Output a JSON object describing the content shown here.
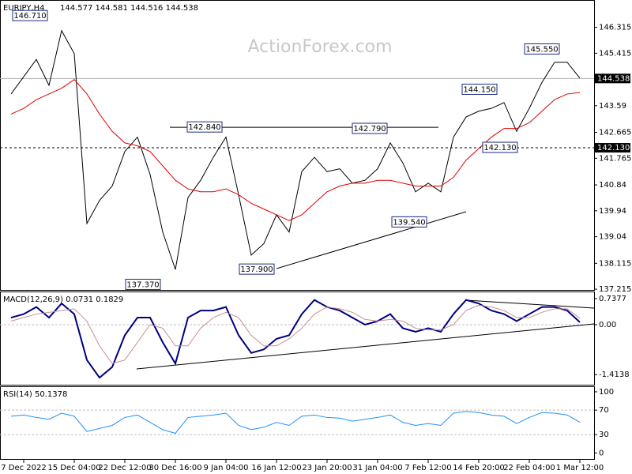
{
  "header": {
    "symbol": "EURJPY,H4",
    "ohlc": "144.577 144.581 144.516 144.538"
  },
  "watermark": "ActionForex.com",
  "chart_data": [
    {
      "type": "line",
      "title": "EURJPY,H4",
      "categories": [
        null,
        "7 Dec 2022",
        null,
        null,
        null,
        "15 Dec 04:00",
        null,
        null,
        null,
        "22 Dec 12:00",
        null,
        null,
        null,
        "30 Dec 16:00",
        null,
        null,
        null,
        "9 Jan 04:00",
        null,
        null,
        null,
        "16 Jan 12:00",
        null,
        null,
        null,
        "23 Jan 20:00",
        null,
        null,
        null,
        "31 Jan 04:00",
        null,
        null,
        null,
        "7 Feb 12:00",
        null,
        null,
        null,
        "14 Feb 20:00",
        null,
        null,
        null,
        "22 Feb 04:00",
        null,
        null,
        null,
        "1 Mar 12:00"
      ],
      "series": [
        {
          "color": "#000000",
          "values": [
            144.0,
            144.6,
            145.2,
            144.3,
            146.2,
            145.4,
            139.5,
            140.3,
            140.8,
            142.0,
            142.5,
            141.2,
            139.2,
            137.9,
            140.4,
            141.0,
            141.8,
            142.5,
            140.5,
            138.4,
            138.8,
            139.8,
            139.2,
            141.3,
            141.8,
            141.3,
            141.4,
            140.9,
            141.0,
            141.4,
            142.3,
            141.6,
            140.6,
            140.9,
            140.6,
            142.5,
            143.2,
            143.4,
            143.5,
            143.7,
            142.7,
            143.5,
            144.4,
            145.1,
            145.1,
            144.55
          ]
        },
        {
          "color": "#e00000",
          "values": [
            143.3,
            143.5,
            143.8,
            144.0,
            144.2,
            144.5,
            144.0,
            143.3,
            142.7,
            142.3,
            142.2,
            142.0,
            141.5,
            141.0,
            140.7,
            140.6,
            140.6,
            140.7,
            140.5,
            140.2,
            140.0,
            139.8,
            139.6,
            139.8,
            140.2,
            140.6,
            140.8,
            140.9,
            140.9,
            141.0,
            141.0,
            140.9,
            140.8,
            140.8,
            140.8,
            141.1,
            141.7,
            142.1,
            142.5,
            142.8,
            142.8,
            143.0,
            143.4,
            143.8,
            144.0,
            144.05
          ]
        }
      ],
      "ylim": [
        137.19,
        147.21
      ],
      "yticks": [
        146.315,
        145.415,
        143.59,
        142.665,
        141.765,
        140.84,
        139.94,
        139.04,
        138.115,
        137.215
      ],
      "marker_lines": [
        {
          "value": 144.538,
          "label": "144.538",
          "style": "solid"
        },
        {
          "value": 142.13,
          "label": "142.130",
          "style": "dashed"
        }
      ],
      "annotations": [
        {
          "value": 146.71,
          "label": "146.710"
        },
        {
          "value": 142.84,
          "label": "142.840"
        },
        {
          "value": 142.79,
          "label": "142.790"
        },
        {
          "value": 145.55,
          "label": "145.550"
        },
        {
          "value": 144.15,
          "label": "144.150"
        },
        {
          "value": 142.13,
          "label": "142.130"
        },
        {
          "value": 139.54,
          "label": "139.540"
        },
        {
          "value": 137.37,
          "label": "137.370"
        },
        {
          "value": 137.9,
          "label": "137.900"
        }
      ]
    },
    {
      "type": "line",
      "title": "MACD(12,26,9) 0.0731 0.1829",
      "series": [
        {
          "color": "#000080",
          "values": [
            0.2,
            0.3,
            0.5,
            0.2,
            0.6,
            0.3,
            -1.0,
            -1.5,
            -1.2,
            -0.3,
            0.2,
            0.2,
            -0.5,
            -1.1,
            0.2,
            0.4,
            0.4,
            0.5,
            -0.3,
            -0.8,
            -0.7,
            -0.4,
            -0.3,
            0.3,
            0.7,
            0.5,
            0.4,
            0.2,
            0.0,
            0.1,
            0.3,
            -0.1,
            -0.2,
            -0.1,
            -0.2,
            0.3,
            0.7,
            0.6,
            0.4,
            0.3,
            0.1,
            0.3,
            0.5,
            0.5,
            0.4,
            0.07
          ]
        },
        {
          "color": "#c89090",
          "values": [
            0.1,
            0.2,
            0.3,
            0.35,
            0.4,
            0.45,
            0.1,
            -0.6,
            -1.1,
            -1.0,
            -0.5,
            0.0,
            -0.1,
            -0.6,
            -0.6,
            -0.1,
            0.2,
            0.35,
            0.2,
            -0.3,
            -0.6,
            -0.6,
            -0.4,
            -0.1,
            0.3,
            0.5,
            0.45,
            0.35,
            0.15,
            0.1,
            0.15,
            0.1,
            -0.1,
            -0.15,
            -0.15,
            0.0,
            0.4,
            0.55,
            0.5,
            0.4,
            0.2,
            0.2,
            0.35,
            0.45,
            0.45,
            0.18
          ]
        }
      ],
      "ylim": [
        -1.7,
        0.894
      ],
      "yticks": [
        0.7377,
        {
          "value": 0,
          "label": "0.00"
        },
        -1.4138
      ]
    },
    {
      "type": "line",
      "title": "RSI(14) 50.1378",
      "series": [
        {
          "color": "#1e90ff",
          "values": [
            60,
            62,
            58,
            55,
            65,
            60,
            35,
            40,
            45,
            58,
            62,
            50,
            38,
            32,
            58,
            60,
            62,
            65,
            45,
            38,
            42,
            50,
            45,
            60,
            62,
            58,
            57,
            52,
            55,
            58,
            62,
            50,
            45,
            48,
            45,
            65,
            68,
            66,
            62,
            60,
            48,
            58,
            66,
            65,
            62,
            50
          ]
        }
      ],
      "ylim": [
        -10,
        109
      ],
      "yticks": [
        100,
        70,
        30,
        0
      ],
      "dashed_levels": [
        70,
        30
      ]
    }
  ]
}
